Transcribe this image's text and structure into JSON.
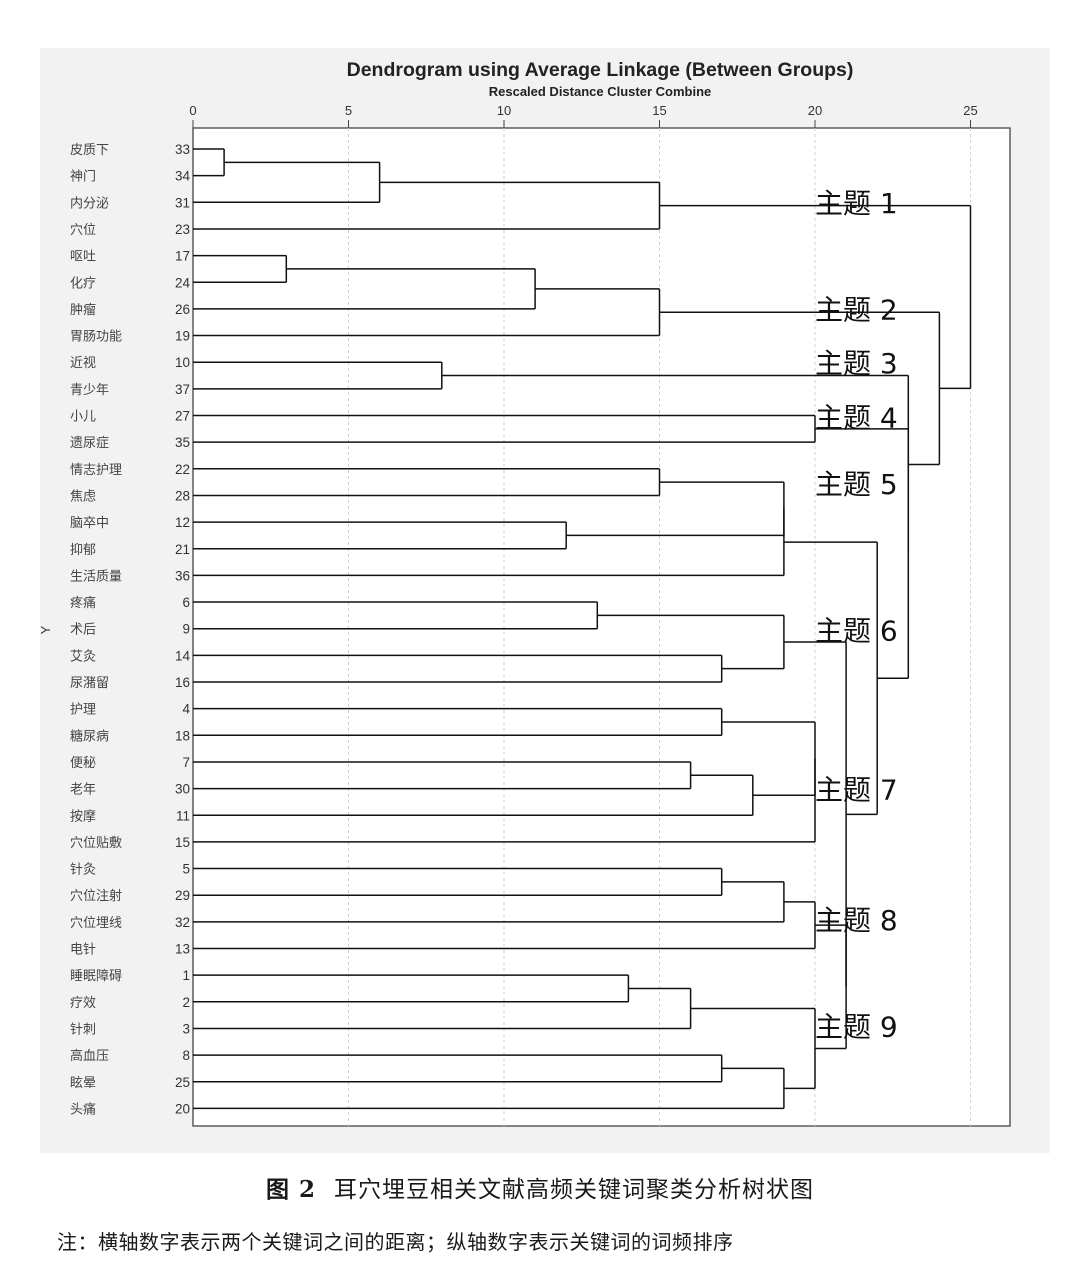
{
  "chart_data": {
    "type": "dendrogram",
    "title": "Dendrogram using Average Linkage (Between Groups)",
    "subtitle": "Rescaled Distance Cluster Combine",
    "ylabel": "Y",
    "xlim": [
      0,
      27
    ],
    "x_ticks": [
      0,
      5,
      10,
      15,
      20,
      25
    ],
    "grid": true,
    "leaves": [
      {
        "label": "皮质下",
        "id": "33"
      },
      {
        "label": "神门",
        "id": "34"
      },
      {
        "label": "内分泌",
        "id": "31"
      },
      {
        "label": "穴位",
        "id": "23"
      },
      {
        "label": "呕吐",
        "id": "17"
      },
      {
        "label": "化疗",
        "id": "24"
      },
      {
        "label": "肿瘤",
        "id": "26"
      },
      {
        "label": "胃肠功能",
        "id": "19"
      },
      {
        "label": "近视",
        "id": "10"
      },
      {
        "label": "青少年",
        "id": "37"
      },
      {
        "label": "小儿",
        "id": "27"
      },
      {
        "label": "遗尿症",
        "id": "35"
      },
      {
        "label": "情志护理",
        "id": "22"
      },
      {
        "label": "焦虑",
        "id": "28"
      },
      {
        "label": "脑卒中",
        "id": "12"
      },
      {
        "label": "抑郁",
        "id": "21"
      },
      {
        "label": "生活质量",
        "id": "36"
      },
      {
        "label": "疼痛",
        "id": "6"
      },
      {
        "label": "术后",
        "id": "9"
      },
      {
        "label": "艾灸",
        "id": "14"
      },
      {
        "label": "尿潴留",
        "id": "16"
      },
      {
        "label": "护理",
        "id": "4"
      },
      {
        "label": "糖尿病",
        "id": "18"
      },
      {
        "label": "便秘",
        "id": "7"
      },
      {
        "label": "老年",
        "id": "30"
      },
      {
        "label": "按摩",
        "id": "11"
      },
      {
        "label": "穴位贴敷",
        "id": "15"
      },
      {
        "label": "针灸",
        "id": "5"
      },
      {
        "label": "穴位注射",
        "id": "29"
      },
      {
        "label": "穴位埋线",
        "id": "32"
      },
      {
        "label": "电针",
        "id": "13"
      },
      {
        "label": "睡眠障碍",
        "id": "1"
      },
      {
        "label": "疗效",
        "id": "2"
      },
      {
        "label": "针刺",
        "id": "3"
      },
      {
        "label": "高血压",
        "id": "8"
      },
      {
        "label": "眩晕",
        "id": "25"
      },
      {
        "label": "头痛",
        "id": "20"
      }
    ],
    "merges": [
      {
        "a": 0,
        "b": 1,
        "d": 1
      },
      {
        "a": 10,
        "b": 11,
        "d": 20
      },
      {
        "a": 37,
        "b": 2,
        "d": 6
      },
      {
        "a": 4,
        "b": 5,
        "d": 3
      },
      {
        "a": 40,
        "b": 6,
        "d": 11
      },
      {
        "a": 41,
        "b": 7,
        "d": 15
      },
      {
        "a": 39,
        "b": 3,
        "d": 15
      },
      {
        "a": 8,
        "b": 9,
        "d": 8
      },
      {
        "a": 12,
        "b": 13,
        "d": 15
      },
      {
        "a": 14,
        "b": 15,
        "d": 12
      },
      {
        "a": 45,
        "b": 46,
        "d": 19
      },
      {
        "a": 47,
        "b": 16,
        "d": 19
      },
      {
        "a": 17,
        "b": 18,
        "d": 13
      },
      {
        "a": 19,
        "b": 20,
        "d": 17
      },
      {
        "a": 49,
        "b": 50,
        "d": 19
      },
      {
        "a": 21,
        "b": 22,
        "d": 17
      },
      {
        "a": 23,
        "b": 24,
        "d": 16
      },
      {
        "a": 53,
        "b": 25,
        "d": 18
      },
      {
        "a": 52,
        "b": 54,
        "d": 20
      },
      {
        "a": 55,
        "b": 26,
        "d": 20
      },
      {
        "a": 27,
        "b": 28,
        "d": 17
      },
      {
        "a": 57,
        "b": 29,
        "d": 19
      },
      {
        "a": 58,
        "b": 30,
        "d": 20
      },
      {
        "a": 31,
        "b": 32,
        "d": 14
      },
      {
        "a": 60,
        "b": 33,
        "d": 16
      },
      {
        "a": 34,
        "b": 35,
        "d": 17
      },
      {
        "a": 62,
        "b": 36,
        "d": 19
      },
      {
        "a": 61,
        "b": 63,
        "d": 20
      },
      {
        "a": 59,
        "b": 64,
        "d": 21
      },
      {
        "a": 51,
        "b": 65,
        "d": 21
      },
      {
        "a": 48,
        "b": 66,
        "d": 22
      },
      {
        "a": 38,
        "b": 67,
        "d": 23
      },
      {
        "a": 44,
        "b": 68,
        "d": 23
      },
      {
        "a": 42,
        "b": 69,
        "d": 24
      },
      {
        "a": 43,
        "b": 70,
        "d": 25
      }
    ],
    "annotations": [
      {
        "text": "主题 1",
        "row": 1.95
      },
      {
        "text": "主题 2",
        "row": 5.95
      },
      {
        "text": "主题 3",
        "row": 7.95
      },
      {
        "text": "主题 4",
        "row": 10.0
      },
      {
        "text": "主题 5",
        "row": 12.5
      },
      {
        "text": "主题 6",
        "row": 18.0
      },
      {
        "text": "主题 7",
        "row": 23.95
      },
      {
        "text": "主题 8",
        "row": 28.85
      },
      {
        "text": "主题 9",
        "row": 32.85
      }
    ]
  },
  "caption": {
    "figure_number": "图 2",
    "text": "耳穴埋豆相关文献高频关键词聚类分析树状图"
  },
  "note": "注：横轴数字表示两个关键词之间的距离；纵轴数字表示关键词的词频排序"
}
